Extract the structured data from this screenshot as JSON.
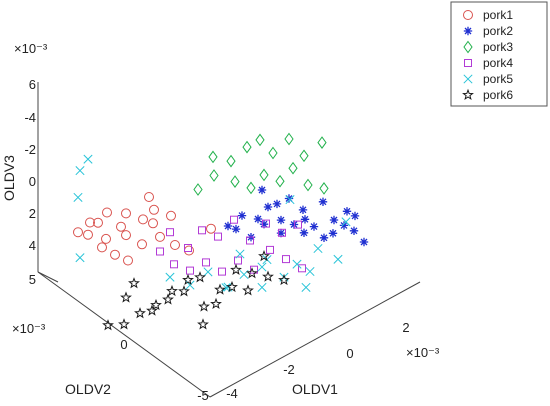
{
  "chart_data": {
    "type": "scatter",
    "projection": "3d",
    "title": "",
    "axes": {
      "x": {
        "label": "OLDV1",
        "multiplier": "×10⁻³",
        "ticks": [
          "-4",
          "-2",
          "0",
          "2"
        ],
        "range": [
          -4,
          3
        ]
      },
      "y": {
        "label": "OLDV2",
        "multiplier": "×10⁻³",
        "ticks": [
          "-5",
          "0"
        ],
        "range": [
          -5,
          4
        ]
      },
      "z": {
        "label": "OLDV3",
        "multiplier": "×10⁻³",
        "ticks": [
          "6",
          "-4",
          "-2",
          "0",
          "2",
          "4",
          "5"
        ],
        "direction": "reversed"
      }
    },
    "grid": false,
    "legend": {
      "position": "top-right"
    },
    "series": [
      {
        "name": "pork1",
        "marker": "circle",
        "color": "#d9534f",
        "points": [
          [
            -3.6,
            2.5,
            -1.5
          ],
          [
            -3.4,
            2.2,
            -2.2
          ],
          [
            -3.2,
            2.6,
            -1.0
          ],
          [
            -3.0,
            2.4,
            -1.8
          ],
          [
            -2.9,
            2.1,
            -2.6
          ],
          [
            -2.8,
            2.3,
            -0.6
          ],
          [
            -2.6,
            2.8,
            0.4
          ],
          [
            -2.5,
            2.0,
            -1.4
          ],
          [
            -2.3,
            2.6,
            1.0
          ],
          [
            -2.2,
            2.2,
            -2.0
          ],
          [
            -2.0,
            2.5,
            -0.2
          ],
          [
            -1.9,
            1.8,
            -1.6
          ],
          [
            -1.8,
            2.7,
            1.8
          ],
          [
            -1.6,
            2.3,
            0.6
          ],
          [
            -1.5,
            1.9,
            -1.0
          ],
          [
            -1.3,
            2.4,
            -2.4
          ],
          [
            -1.2,
            2.0,
            0.2
          ],
          [
            -1.0,
            2.6,
            -1.2
          ],
          [
            -0.9,
            1.7,
            0.8
          ],
          [
            -0.7,
            2.2,
            -0.8
          ],
          [
            -0.5,
            1.6,
            1.4
          ],
          [
            0.1,
            1.4,
            0.2
          ]
        ]
      },
      {
        "name": "pork2",
        "marker": "asterisk",
        "color": "#1f2fd1",
        "points": [
          [
            0.4,
            1.0,
            0.0
          ],
          [
            0.6,
            0.6,
            -0.8
          ],
          [
            0.8,
            1.2,
            0.6
          ],
          [
            1.0,
            0.4,
            -0.4
          ],
          [
            1.1,
            0.9,
            1.2
          ],
          [
            1.2,
            0.2,
            -1.2
          ],
          [
            1.4,
            0.7,
            0.4
          ],
          [
            1.5,
            0.0,
            -0.2
          ],
          [
            1.6,
            1.1,
            -1.6
          ],
          [
            1.7,
            0.3,
            1.0
          ],
          [
            1.8,
            -0.2,
            0.2
          ],
          [
            1.9,
            0.8,
            -0.6
          ],
          [
            2.0,
            -0.4,
            0.8
          ],
          [
            2.1,
            0.5,
            -1.0
          ],
          [
            2.2,
            -0.6,
            0.4
          ],
          [
            2.3,
            0.1,
            -0.3
          ],
          [
            2.4,
            -0.8,
            1.2
          ],
          [
            2.5,
            0.3,
            0.6
          ],
          [
            2.6,
            -1.0,
            0.0
          ],
          [
            2.7,
            -0.3,
            -0.8
          ],
          [
            2.8,
            -1.2,
            0.4
          ],
          [
            2.9,
            -0.5,
            1.4
          ],
          [
            3.0,
            -1.4,
            0.8
          ],
          [
            3.1,
            -0.9,
            -0.2
          ],
          [
            3.2,
            -1.6,
            1.6
          ],
          [
            3.3,
            -1.0,
            0.2
          ]
        ]
      },
      {
        "name": "pork3",
        "marker": "diamond",
        "color": "#22b14c",
        "points": [
          [
            -0.2,
            1.6,
            -2.6
          ],
          [
            0.2,
            1.4,
            -3.4
          ],
          [
            0.5,
            1.9,
            -4.2
          ],
          [
            0.7,
            1.1,
            -2.8
          ],
          [
            0.9,
            1.6,
            -3.8
          ],
          [
            1.1,
            0.9,
            -2.2
          ],
          [
            1.3,
            1.4,
            -4.6
          ],
          [
            1.4,
            0.7,
            -3.0
          ],
          [
            1.6,
            1.2,
            -5.0
          ],
          [
            1.8,
            0.5,
            -2.4
          ],
          [
            1.9,
            1.0,
            -4.0
          ],
          [
            2.1,
            0.3,
            -3.2
          ],
          [
            2.3,
            0.8,
            -4.8
          ],
          [
            2.4,
            0.0,
            -2.0
          ],
          [
            2.6,
            0.5,
            -3.6
          ],
          [
            2.8,
            -0.2,
            -1.6
          ],
          [
            3.0,
            0.2,
            -4.4
          ]
        ]
      },
      {
        "name": "pork4",
        "marker": "square",
        "color": "#b23bd6",
        "points": [
          [
            -1.6,
            1.4,
            0.6
          ],
          [
            -1.4,
            1.0,
            1.4
          ],
          [
            -1.2,
            1.5,
            -0.4
          ],
          [
            -1.0,
            0.8,
            2.0
          ],
          [
            -0.8,
            1.2,
            0.8
          ],
          [
            -0.6,
            0.6,
            1.6
          ],
          [
            -0.4,
            1.1,
            -0.2
          ],
          [
            -0.2,
            0.4,
            2.4
          ],
          [
            0.0,
            0.9,
            0.4
          ],
          [
            0.2,
            0.2,
            1.8
          ],
          [
            0.4,
            0.7,
            -0.6
          ],
          [
            0.6,
            0.0,
            2.6
          ],
          [
            0.8,
            0.5,
            1.0
          ],
          [
            1.0,
            -0.2,
            1.4
          ],
          [
            1.2,
            0.3,
            0.0
          ],
          [
            1.4,
            -0.4,
            2.2
          ],
          [
            1.6,
            0.1,
            0.8
          ],
          [
            1.8,
            -0.6,
            3.0
          ],
          [
            2.0,
            -0.1,
            0.4
          ]
        ]
      },
      {
        "name": "pork5",
        "marker": "x",
        "color": "#29c4d8",
        "points": [
          [
            -3.2,
            3.0,
            -5.2
          ],
          [
            -3.4,
            2.8,
            -3.6
          ],
          [
            -2.8,
            3.2,
            -5.6
          ],
          [
            -3.6,
            2.4,
            0.2
          ],
          [
            -1.4,
            1.2,
            2.4
          ],
          [
            -1.0,
            0.8,
            3.0
          ],
          [
            -0.6,
            0.5,
            2.2
          ],
          [
            -0.2,
            0.2,
            3.4
          ],
          [
            0.2,
            -0.1,
            2.6
          ],
          [
            0.6,
            -0.4,
            3.6
          ],
          [
            0.9,
            -0.2,
            2.0
          ],
          [
            1.2,
            -0.6,
            3.2
          ],
          [
            1.5,
            -0.8,
            2.4
          ],
          [
            1.8,
            -1.0,
            3.0
          ],
          [
            0.4,
            0.4,
            1.6
          ],
          [
            1.0,
            0.2,
            2.8
          ],
          [
            2.2,
            -0.8,
            1.8
          ],
          [
            2.6,
            -1.2,
            2.6
          ],
          [
            3.0,
            -1.0,
            0.4
          ],
          [
            1.4,
            -1.4,
            3.6
          ],
          [
            -0.4,
            -0.2,
            3.0
          ],
          [
            2.2,
            0.6,
            -0.8
          ]
        ]
      },
      {
        "name": "pork6",
        "marker": "star",
        "color": "#1a1a1a",
        "points": [
          [
            -2.6,
            1.6,
            3.2
          ],
          [
            -2.4,
            1.2,
            4.2
          ],
          [
            -2.2,
            1.8,
            2.6
          ],
          [
            -2.0,
            1.0,
            3.8
          ],
          [
            -1.8,
            1.5,
            4.6
          ],
          [
            -1.6,
            0.8,
            3.0
          ],
          [
            -1.4,
            1.3,
            4.0
          ],
          [
            -1.2,
            0.6,
            2.4
          ],
          [
            -1.0,
            1.1,
            3.6
          ],
          [
            -0.8,
            0.4,
            4.4
          ],
          [
            -0.6,
            0.9,
            2.8
          ],
          [
            -0.4,
            0.2,
            3.4
          ],
          [
            -0.2,
            0.7,
            4.8
          ],
          [
            0.0,
            0.0,
            2.2
          ],
          [
            0.2,
            0.5,
            3.8
          ],
          [
            0.4,
            -0.2,
            2.6
          ],
          [
            0.6,
            0.3,
            4.2
          ],
          [
            0.8,
            -0.4,
            3.0
          ],
          [
            1.0,
            0.1,
            2.0
          ],
          [
            1.2,
            -0.6,
            3.4
          ],
          [
            -3.0,
            1.9,
            5.0
          ],
          [
            -2.8,
            1.4,
            4.8
          ],
          [
            -1.5,
            -0.6,
            4.6
          ]
        ]
      }
    ]
  }
}
